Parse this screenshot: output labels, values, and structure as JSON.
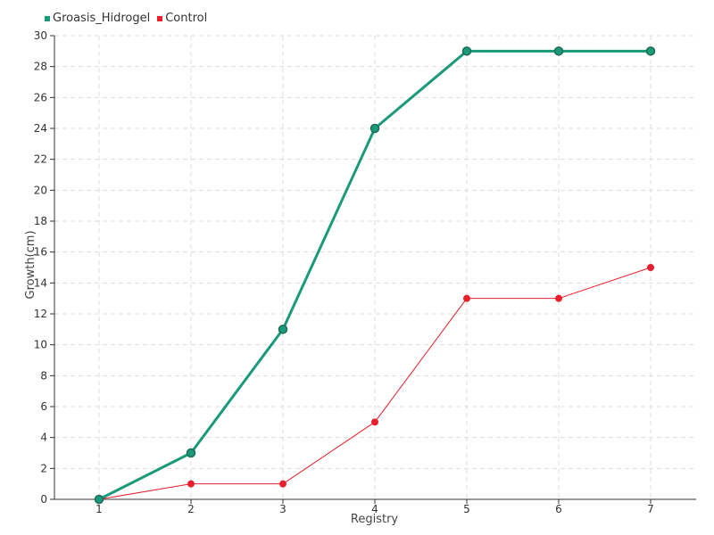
{
  "chart_data": {
    "type": "line",
    "xlabel": "Registry",
    "ylabel": "Growth(cm)",
    "categories": [
      "1",
      "2",
      "3",
      "4",
      "5",
      "6",
      "7"
    ],
    "ylim": [
      0,
      30
    ],
    "ytick_step": 2,
    "grid": true,
    "legend_position": "top-left",
    "series": [
      {
        "name": "Groasis_Hidrogel",
        "color": "#1a9a7a",
        "values": [
          0,
          3,
          11,
          24,
          29,
          29,
          29
        ]
      },
      {
        "name": "Control",
        "color": "#e8202e",
        "values": [
          0,
          1,
          1,
          5,
          13,
          13,
          15
        ]
      }
    ]
  }
}
